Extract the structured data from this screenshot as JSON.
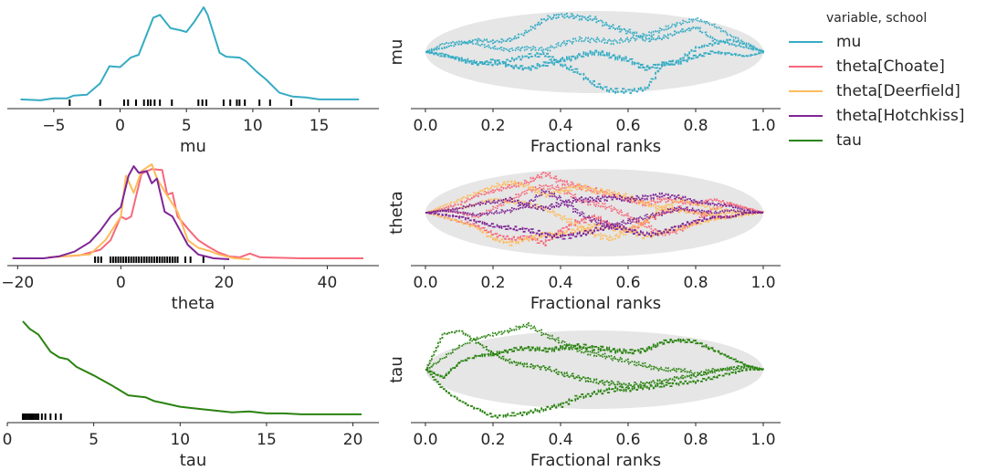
{
  "legend": {
    "title": "variable, school",
    "entries": [
      {
        "label": "mu",
        "color": "#35acc4"
      },
      {
        "label": "theta[Choate]",
        "color": "#f7687a"
      },
      {
        "label": "theta[Deerfield]",
        "color": "#fdbb5c"
      },
      {
        "label": "theta[Hotchkiss]",
        "color": "#7e2596"
      },
      {
        "label": "tau",
        "color": "#2a8311"
      }
    ]
  },
  "chart_data": [
    {
      "type": "line",
      "panel": "density",
      "xlabel": "mu",
      "xlim": [
        -8.5,
        19.5
      ],
      "xticks": [
        -5,
        0,
        5,
        10,
        15
      ],
      "xtick_labels": [
        "−5",
        "0",
        "5",
        "10",
        "15"
      ],
      "series": [
        {
          "name": "mu",
          "color": "#35acc4",
          "x": [
            -7.5,
            -6,
            -5,
            -4,
            -3.5,
            -2.5,
            -1.5,
            -0.8,
            0,
            0.8,
            1.4,
            2.5,
            3,
            3.8,
            4.5,
            5,
            5.6,
            6.3,
            6.6,
            7.5,
            8,
            9,
            9.5,
            10.3,
            11,
            12,
            13,
            14,
            15,
            17,
            18
          ],
          "y": [
            0.03,
            0.02,
            0.04,
            0.04,
            0.07,
            0.08,
            0.2,
            0.38,
            0.37,
            0.47,
            0.5,
            0.89,
            0.92,
            0.78,
            0.76,
            0.74,
            0.85,
            1.0,
            0.92,
            0.52,
            0.48,
            0.47,
            0.43,
            0.32,
            0.24,
            0.1,
            0.06,
            0.05,
            0.03,
            0.03,
            0.03
          ]
        }
      ],
      "rug": [
        -3.8,
        -1.5,
        0.3,
        0.6,
        1.2,
        1.8,
        2.1,
        2.3,
        2.6,
        3.0,
        3.9,
        5.9,
        6.2,
        6.5,
        7.8,
        8.3,
        8.8,
        9.0,
        9.4,
        10.5,
        11.3,
        12.9
      ]
    },
    {
      "type": "line",
      "panel": "density",
      "xlabel": "theta",
      "xlim": [
        -22,
        50
      ],
      "xticks": [
        -20,
        0,
        20,
        40
      ],
      "xtick_labels": [
        "−20",
        "0",
        "20",
        "40"
      ],
      "series": [
        {
          "name": "theta[Choate]",
          "color": "#f7687a",
          "x": [
            -14,
            -8,
            -4,
            -2,
            0,
            1,
            2,
            4,
            6,
            8,
            9,
            10,
            11,
            13,
            15,
            17,
            19,
            21,
            23,
            25,
            27,
            35,
            47
          ],
          "y": [
            0.02,
            0.04,
            0.1,
            0.2,
            0.45,
            0.42,
            0.45,
            0.9,
            0.95,
            0.94,
            0.68,
            0.7,
            0.45,
            0.32,
            0.2,
            0.13,
            0.07,
            0.03,
            0.02,
            0.06,
            0.02,
            0.01,
            0.01
          ]
        },
        {
          "name": "theta[Deerfield]",
          "color": "#fdbb5c",
          "x": [
            -14,
            -6,
            -3,
            0,
            1,
            2.5,
            4,
            6,
            7,
            9,
            11,
            13,
            15,
            17,
            19,
            22,
            25
          ],
          "y": [
            0.02,
            0.05,
            0.2,
            0.45,
            0.88,
            0.7,
            0.93,
            1.0,
            0.85,
            0.67,
            0.5,
            0.2,
            0.12,
            0.09,
            0.05,
            0.01,
            0.0
          ]
        },
        {
          "name": "theta[Hotchkiss]",
          "color": "#7e2596",
          "x": [
            -21,
            -15,
            -12,
            -9,
            -6,
            -4,
            -2,
            0,
            1.5,
            2.5,
            3.5,
            5,
            6,
            7,
            8.5,
            10,
            11.5,
            13,
            15,
            18,
            21
          ],
          "y": [
            0.01,
            0.01,
            0.03,
            0.08,
            0.18,
            0.3,
            0.45,
            0.55,
            0.88,
            0.98,
            0.91,
            0.93,
            0.8,
            0.85,
            0.5,
            0.45,
            0.3,
            0.15,
            0.05,
            0.01,
            0.0
          ]
        }
      ],
      "rug": [
        -5,
        -4.4,
        -3.8,
        -2,
        -1.5,
        -1,
        -0.5,
        0,
        0.5,
        1,
        1.5,
        2,
        2.5,
        3,
        3.5,
        4,
        4.5,
        5,
        5.5,
        6,
        6.5,
        7,
        7.5,
        8,
        8.5,
        9,
        9.5,
        10,
        10.5,
        11,
        12.5,
        13.5,
        16
      ]
    },
    {
      "type": "line",
      "panel": "density",
      "xlabel": "tau",
      "xlim": [
        0,
        21.5
      ],
      "xticks": [
        0,
        5,
        10,
        15,
        20
      ],
      "xtick_labels": [
        "0",
        "5",
        "10",
        "15",
        "20"
      ],
      "series": [
        {
          "name": "tau",
          "color": "#2a8311",
          "x": [
            0.9,
            1.3,
            1.8,
            2.5,
            3,
            3.5,
            4,
            5,
            6,
            7,
            8,
            8.5,
            9,
            10,
            11,
            12,
            13,
            14,
            15,
            16,
            17,
            18,
            20.5
          ],
          "y": [
            1.0,
            0.92,
            0.86,
            0.68,
            0.62,
            0.6,
            0.52,
            0.43,
            0.33,
            0.22,
            0.2,
            0.16,
            0.14,
            0.1,
            0.08,
            0.06,
            0.04,
            0.05,
            0.03,
            0.03,
            0.02,
            0.02,
            0.02
          ]
        }
      ],
      "rug": [
        0.9,
        1.0,
        1.1,
        1.2,
        1.3,
        1.4,
        1.5,
        1.6,
        1.7,
        1.8,
        2.0,
        2.2,
        2.5,
        2.8,
        3.1
      ]
    },
    {
      "type": "line",
      "panel": "rank_ecdf",
      "ylabel": "mu",
      "xlabel": "Fractional ranks",
      "xlim": [
        0,
        1
      ],
      "xticks": [
        0,
        0.2,
        0.4,
        0.6,
        0.8,
        1.0
      ],
      "xtick_labels": [
        "0.0",
        "0.2",
        "0.4",
        "0.6",
        "0.8",
        "1.0"
      ],
      "series": [
        {
          "color": "#35acc4",
          "chain": 0,
          "y": [
            0,
            0.1,
            0.2,
            0.3,
            0.25,
            0.3,
            0.5,
            0.8,
            0.9,
            0.85,
            0.8,
            0.6,
            0.5,
            0.3,
            0.35,
            0.5,
            0.6,
            0.3,
            0.2,
            0.1,
            0
          ]
        },
        {
          "color": "#35acc4",
          "chain": 1,
          "y": [
            0,
            -0.1,
            -0.15,
            -0.25,
            -0.3,
            -0.2,
            -0.1,
            -0.05,
            -0.3,
            -0.5,
            -0.8,
            -0.95,
            -0.95,
            -0.9,
            -0.3,
            -0.2,
            0.1,
            0.2,
            0.3,
            0.15,
            0
          ]
        },
        {
          "color": "#35acc4",
          "chain": 2,
          "y": [
            0,
            0.2,
            0.25,
            0.2,
            0.1,
            0.05,
            0.1,
            0.05,
            0.2,
            0.3,
            0.3,
            0.25,
            0.3,
            0.4,
            0.55,
            0.7,
            0.8,
            0.65,
            0.4,
            0.2,
            0
          ]
        },
        {
          "color": "#35acc4",
          "chain": 3,
          "y": [
            0,
            -0.05,
            -0.2,
            -0.3,
            -0.2,
            -0.35,
            -0.4,
            -0.3,
            -0.2,
            -0.1,
            0,
            -0.1,
            -0.2,
            -0.4,
            -0.3,
            -0.25,
            -0.1,
            0,
            -0.05,
            -0.1,
            0
          ]
        }
      ]
    },
    {
      "type": "line",
      "panel": "rank_ecdf",
      "ylabel": "theta",
      "xlabel": "Fractional ranks",
      "xlim": [
        0,
        1
      ],
      "xticks": [
        0,
        0.2,
        0.4,
        0.6,
        0.8,
        1.0
      ],
      "xtick_labels": [
        "0.0",
        "0.2",
        "0.4",
        "0.6",
        "0.8",
        "1.0"
      ],
      "series": [
        {
          "color": "#f7687a",
          "chain": 0,
          "y": [
            0,
            0.1,
            0.2,
            0.4,
            0.5,
            0.6,
            0.7,
            0.9,
            0.7,
            0.6,
            0.5,
            0.4,
            0.3,
            0.2,
            0.3,
            0.25,
            0.2,
            0.3,
            0.2,
            0.1,
            0
          ]
        },
        {
          "color": "#f7687a",
          "chain": 1,
          "y": [
            0,
            -0.1,
            -0.2,
            -0.3,
            -0.5,
            -0.6,
            -0.55,
            -0.7,
            -0.4,
            -0.2,
            -0.1,
            -0.3,
            -0.4,
            -0.2,
            0,
            0.1,
            0,
            -0.1,
            -0.1,
            0,
            0
          ]
        },
        {
          "color": "#f7687a",
          "chain": 2,
          "y": [
            0,
            0.05,
            0,
            -0.1,
            0.1,
            0.3,
            0.5,
            0.6,
            0.55,
            0.3,
            0.2,
            0.1,
            -0.1,
            -0.3,
            -0.5,
            -0.4,
            -0.2,
            0.1,
            0.2,
            0.1,
            0
          ]
        },
        {
          "color": "#fdbb5c",
          "chain": 0,
          "y": [
            0,
            0.15,
            0.3,
            0.45,
            0.6,
            0.7,
            0.6,
            0.4,
            0.5,
            0.6,
            0.5,
            0.45,
            0.35,
            0.2,
            0.1,
            0.05,
            0,
            -0.05,
            0,
            0,
            0
          ]
        },
        {
          "color": "#fdbb5c",
          "chain": 1,
          "y": [
            0,
            -0.1,
            -0.2,
            -0.35,
            -0.6,
            -0.7,
            -0.6,
            -0.5,
            -0.5,
            -0.4,
            -0.3,
            -0.35,
            -0.4,
            -0.55,
            -0.45,
            -0.35,
            -0.25,
            -0.15,
            -0.1,
            -0.05,
            0
          ]
        },
        {
          "color": "#fdbb5c",
          "chain": 2,
          "y": [
            0,
            0.05,
            0.1,
            0.2,
            0.3,
            0.25,
            0.2,
            0.1,
            -0.1,
            -0.3,
            -0.5,
            -0.6,
            -0.4,
            -0.2,
            0.1,
            0.3,
            0.2,
            0.1,
            0.05,
            0,
            0
          ]
        },
        {
          "color": "#7e2596",
          "chain": 0,
          "y": [
            0,
            0.05,
            0.1,
            0.2,
            0.25,
            0.3,
            0.15,
            0.1,
            0.2,
            0.3,
            0.3,
            0.35,
            0.3,
            0.35,
            0.4,
            0.35,
            0.25,
            0.2,
            0.15,
            0.05,
            0
          ]
        },
        {
          "color": "#7e2596",
          "chain": 1,
          "y": [
            0,
            -0.05,
            -0.1,
            -0.2,
            -0.3,
            -0.35,
            -0.4,
            -0.5,
            -0.55,
            -0.5,
            -0.4,
            -0.3,
            -0.4,
            -0.5,
            -0.45,
            -0.3,
            -0.2,
            -0.1,
            -0.1,
            0,
            0
          ]
        },
        {
          "color": "#7e2596",
          "chain": 2,
          "y": [
            0,
            0.05,
            0,
            -0.05,
            0,
            0.05,
            0.2,
            0.5,
            0.3,
            0,
            -0.2,
            -0.3,
            -0.2,
            -0.1,
            0,
            0.1,
            0.05,
            0,
            0.05,
            0,
            0
          ]
        }
      ]
    },
    {
      "type": "line",
      "panel": "rank_ecdf",
      "ylabel": "tau",
      "xlabel": "Fractional ranks",
      "xlim": [
        0,
        1
      ],
      "xticks": [
        0,
        0.2,
        0.4,
        0.6,
        0.8,
        1.0
      ],
      "xtick_labels": [
        "0.0",
        "0.2",
        "0.4",
        "0.6",
        "0.8",
        "1.0"
      ],
      "series": [
        {
          "color": "#2a8311",
          "chain": 0,
          "y": [
            0,
            0.9,
            1.0,
            0.7,
            0.4,
            0.2,
            0.1,
            0.05,
            -0.1,
            -0.2,
            -0.3,
            -0.35,
            -0.4,
            -0.35,
            -0.3,
            -0.2,
            -0.15,
            -0.05,
            0.05,
            0.1,
            0
          ]
        },
        {
          "color": "#2a8311",
          "chain": 1,
          "y": [
            0,
            -0.5,
            -0.8,
            -1.0,
            -1.2,
            -1.15,
            -1.1,
            -1.0,
            -0.9,
            -0.7,
            -0.6,
            -0.5,
            -0.5,
            -0.45,
            -0.4,
            -0.35,
            -0.3,
            -0.2,
            -0.1,
            0,
            0
          ]
        },
        {
          "color": "#2a8311",
          "chain": 2,
          "y": [
            0,
            0.3,
            0.6,
            0.8,
            0.9,
            1.0,
            1.15,
            0.9,
            0.7,
            0.5,
            0.4,
            0.3,
            0.2,
            0.1,
            0,
            0,
            -0.1,
            0,
            0,
            0.05,
            0
          ]
        },
        {
          "color": "#2a8311",
          "chain": 3,
          "y": [
            0,
            -0.2,
            0.2,
            0.35,
            0.4,
            0.5,
            0.55,
            0.5,
            0.55,
            0.6,
            0.55,
            0.5,
            0.45,
            0.5,
            0.7,
            0.75,
            0.7,
            0.5,
            0.3,
            0.1,
            0
          ]
        }
      ]
    }
  ]
}
